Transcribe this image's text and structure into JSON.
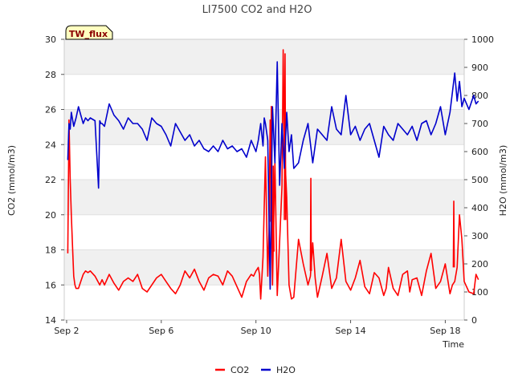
{
  "chart_data": {
    "type": "line",
    "title": "LI7500 CO2 and H2O",
    "xlabel": "Time",
    "ylabel": "CO2 (mmol/m3)",
    "y2label": "H2O (mmol/m3)",
    "badge": "TW_flux",
    "x_unit": "days since Sep 1",
    "xlim": [
      1.9,
      18.8
    ],
    "ylim": [
      14,
      30
    ],
    "y2lim": [
      0,
      1000
    ],
    "x_ticks": [
      {
        "value": 2,
        "label": "Sep 2"
      },
      {
        "value": 6,
        "label": "Sep 6"
      },
      {
        "value": 10,
        "label": "Sep 10"
      },
      {
        "value": 14,
        "label": "Sep 14"
      },
      {
        "value": 18,
        "label": "Sep 18"
      }
    ],
    "y_ticks": [
      14,
      16,
      18,
      20,
      22,
      24,
      26,
      28,
      30
    ],
    "y2_ticks": [
      0,
      100,
      200,
      300,
      400,
      500,
      600,
      700,
      800,
      900,
      1000
    ],
    "grid": true,
    "shaded_bands": true,
    "legend_position": "bottom-center",
    "series": [
      {
        "name": "CO2",
        "axis": "left",
        "color": "#ff0000",
        "x": [
          2.05,
          2.1,
          2.15,
          2.2,
          2.25,
          2.3,
          2.35,
          2.4,
          2.5,
          2.6,
          2.7,
          2.8,
          2.9,
          3.0,
          3.2,
          3.4,
          3.5,
          3.6,
          3.8,
          4.0,
          4.2,
          4.4,
          4.6,
          4.8,
          5.0,
          5.2,
          5.4,
          5.6,
          5.8,
          6.0,
          6.2,
          6.4,
          6.6,
          6.8,
          7.0,
          7.2,
          7.4,
          7.6,
          7.8,
          8.0,
          8.2,
          8.4,
          8.6,
          8.8,
          9.0,
          9.2,
          9.4,
          9.6,
          9.8,
          9.9,
          10.0,
          10.1,
          10.15,
          10.2,
          10.3,
          10.4,
          10.5,
          10.55,
          10.6,
          10.7,
          10.8,
          10.9,
          11.0,
          11.1,
          11.15,
          11.2,
          11.3,
          11.4,
          11.5,
          11.6,
          11.8,
          12.0,
          12.2,
          12.3,
          12.4,
          12.5,
          12.6,
          12.8,
          13.0,
          13.2,
          13.4,
          13.6,
          13.8,
          14.0,
          14.2,
          14.4,
          14.6,
          14.8,
          15.0,
          15.2,
          15.4,
          15.5,
          15.6,
          15.8,
          16.0,
          16.2,
          16.4,
          16.5,
          16.6,
          16.8,
          17.0,
          17.2,
          17.4,
          17.6,
          17.8,
          18.0,
          18.2,
          18.3,
          18.4,
          18.5,
          18.6,
          18.7,
          18.8,
          19.0,
          19.2,
          19.3,
          19.4
        ],
        "y": [
          17.8,
          25.4,
          22.0,
          20.0,
          18.2,
          16.5,
          16.0,
          15.8,
          15.8,
          16.2,
          16.6,
          16.8,
          16.7,
          16.8,
          16.5,
          16.0,
          16.3,
          16.0,
          16.6,
          16.1,
          15.7,
          16.2,
          16.4,
          16.2,
          16.6,
          15.8,
          15.6,
          16.0,
          16.4,
          16.6,
          16.2,
          15.8,
          15.5,
          16.0,
          16.8,
          16.4,
          16.9,
          16.2,
          15.7,
          16.4,
          16.6,
          16.5,
          16.0,
          16.8,
          16.5,
          15.9,
          15.3,
          16.2,
          16.6,
          16.5,
          16.8,
          17.0,
          16.6,
          15.2,
          17.6,
          23.3,
          16.5,
          19.0,
          25.4,
          16.0,
          23.0,
          15.4,
          18.5,
          21.6,
          29.4,
          24.0,
          21.0,
          16.0,
          15.2,
          15.3,
          18.6,
          17.2,
          16.0,
          16.5,
          18.4,
          16.4,
          15.3,
          16.5,
          17.8,
          15.8,
          16.4,
          18.6,
          16.2,
          15.7,
          16.4,
          17.4,
          15.9,
          15.5,
          16.7,
          16.4,
          15.4,
          15.8,
          17.0,
          15.8,
          15.4,
          16.6,
          16.8,
          15.6,
          16.3,
          16.4,
          15.4,
          16.8,
          17.8,
          15.8,
          16.2,
          17.2,
          15.5,
          16.0,
          16.2,
          17.0,
          20.0,
          18.6,
          16.2,
          15.6,
          15.5,
          16.6,
          16.3
        ],
        "highlights": [
          [
            10.62,
            10.68,
            19.6,
            26.2
          ],
          [
            10.7,
            10.76,
            17.9,
            22.8
          ],
          [
            11.2,
            11.26,
            19.7,
            29.2
          ],
          [
            12.3,
            12.34,
            16.8,
            22.1
          ],
          [
            18.34,
            18.38,
            17.0,
            20.8
          ]
        ]
      },
      {
        "name": "H2O",
        "axis": "right",
        "color": "#0000cc",
        "x": [
          2.05,
          2.1,
          2.15,
          2.2,
          2.3,
          2.4,
          2.5,
          2.6,
          2.7,
          2.8,
          2.9,
          3.0,
          3.2,
          3.35,
          3.4,
          3.45,
          3.5,
          3.6,
          3.8,
          4.0,
          4.2,
          4.4,
          4.6,
          4.8,
          5.0,
          5.2,
          5.4,
          5.6,
          5.8,
          6.0,
          6.2,
          6.4,
          6.6,
          6.8,
          7.0,
          7.2,
          7.4,
          7.6,
          7.8,
          8.0,
          8.2,
          8.4,
          8.6,
          8.8,
          9.0,
          9.2,
          9.4,
          9.6,
          9.8,
          10.0,
          10.1,
          10.2,
          10.3,
          10.35,
          10.4,
          10.5,
          10.6,
          10.7,
          10.8,
          10.9,
          11.0,
          11.1,
          11.2,
          11.3,
          11.4,
          11.5,
          11.6,
          11.8,
          12.0,
          12.2,
          12.4,
          12.6,
          12.8,
          13.0,
          13.2,
          13.4,
          13.6,
          13.8,
          14.0,
          14.2,
          14.4,
          14.6,
          14.8,
          15.0,
          15.2,
          15.4,
          15.6,
          15.8,
          16.0,
          16.2,
          16.4,
          16.6,
          16.8,
          17.0,
          17.2,
          17.4,
          17.6,
          17.8,
          18.0,
          18.2,
          18.4,
          18.5,
          18.6,
          18.7,
          18.8,
          19.0,
          19.2,
          19.3,
          19.4
        ],
        "y": [
          570,
          700,
          680,
          740,
          690,
          720,
          760,
          730,
          700,
          720,
          710,
          720,
          710,
          470,
          710,
          700,
          700,
          690,
          770,
          730,
          710,
          680,
          720,
          700,
          700,
          680,
          640,
          720,
          700,
          690,
          660,
          620,
          700,
          670,
          640,
          660,
          620,
          640,
          610,
          600,
          620,
          600,
          640,
          610,
          620,
          600,
          610,
          580,
          640,
          600,
          640,
          700,
          620,
          720,
          700,
          640,
          110,
          760,
          560,
          920,
          480,
          700,
          540,
          740,
          600,
          660,
          540,
          560,
          640,
          700,
          560,
          680,
          660,
          640,
          760,
          680,
          660,
          800,
          660,
          690,
          640,
          680,
          700,
          640,
          580,
          690,
          660,
          640,
          700,
          680,
          660,
          690,
          640,
          700,
          710,
          660,
          700,
          760,
          660,
          740,
          880,
          780,
          850,
          760,
          790,
          750,
          800,
          770,
          780
        ]
      }
    ],
    "legend": [
      {
        "name": "CO2",
        "color": "#ff0000"
      },
      {
        "name": "H2O",
        "color": "#0000cc"
      }
    ]
  }
}
